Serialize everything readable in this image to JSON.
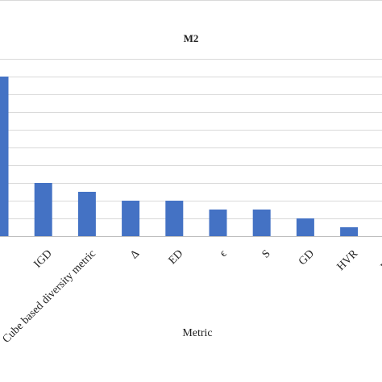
{
  "chart_data": {
    "type": "bar",
    "title": "M2",
    "xlabel": "Metric",
    "ylabel": "",
    "categories": [
      "",
      "IGD",
      "Cube based diversity metric",
      "Δ",
      "ED",
      "ϵ",
      "S",
      "GD",
      "HVR",
      "NDC"
    ],
    "values": [
      18,
      6,
      5,
      4,
      4,
      3,
      3,
      2,
      1,
      0
    ],
    "ylim": [
      0,
      18
    ],
    "grid": true,
    "legend": "none",
    "bar_color": "#4472C4",
    "grid_color": "#d9d9d9"
  }
}
